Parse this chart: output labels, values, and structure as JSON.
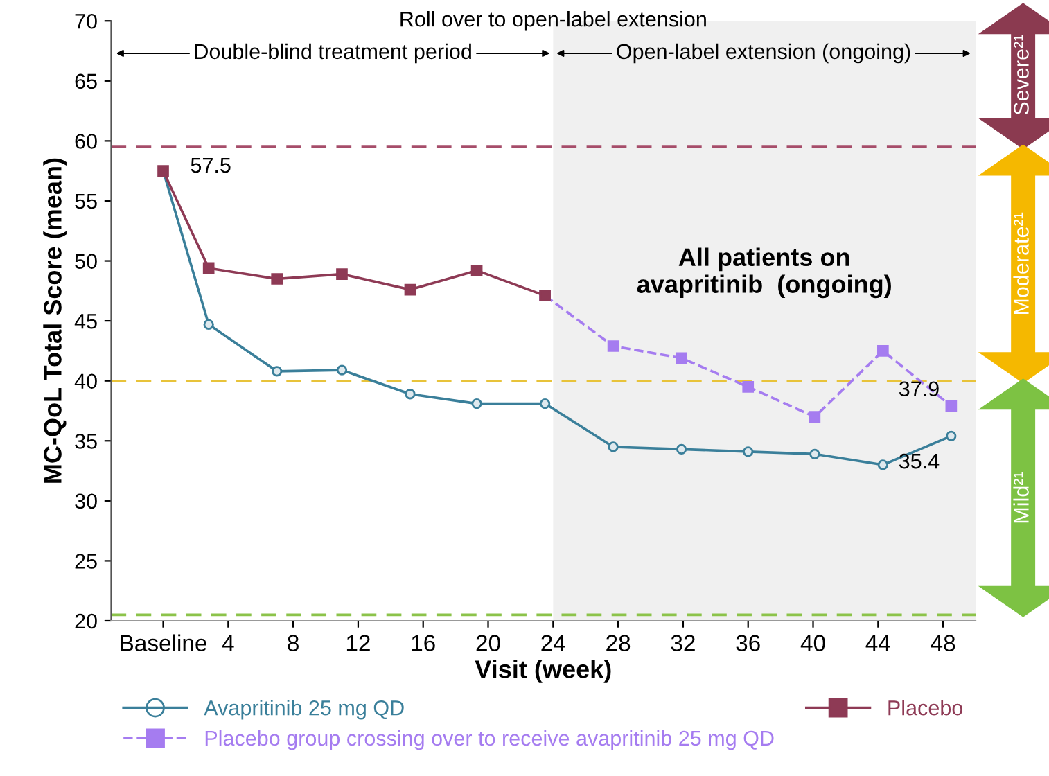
{
  "chart_data": {
    "type": "line",
    "xlabel": "Visit (week)",
    "ylabel": "MC-QoL Total Score (mean)",
    "xlim": [
      -3.2,
      50
    ],
    "ylim": [
      20,
      70
    ],
    "xticks": [
      {
        "value": 0,
        "label": "Baseline"
      },
      4,
      8,
      12,
      16,
      20,
      24,
      28,
      32,
      36,
      40,
      44,
      48
    ],
    "yticks": [
      20,
      25,
      30,
      35,
      40,
      45,
      50,
      55,
      60,
      65,
      70
    ],
    "grid": false,
    "legend": "bottom",
    "series": [
      {
        "name": "Avapritinib 25 mg QD",
        "color": "#3a7f9a",
        "marker": "circle",
        "line_style": "solid",
        "x": [
          0,
          2.8,
          7,
          11,
          15.2,
          19.3,
          23.5,
          27.7,
          31.9,
          36,
          40.1,
          44.3,
          48.5
        ],
        "values": [
          57.5,
          44.7,
          40.8,
          40.9,
          38.9,
          38.1,
          38.1,
          34.5,
          34.3,
          34.1,
          33.9,
          33.0,
          35.4
        ],
        "value_labels": [
          "57.5",
          null,
          null,
          null,
          null,
          null,
          null,
          null,
          null,
          null,
          null,
          null,
          "35.4"
        ]
      },
      {
        "name": "Placebo",
        "color": "#8e3a55",
        "marker": "square",
        "line_style": "solid",
        "x": [
          0,
          2.8,
          7,
          11,
          15.2,
          19.3,
          23.5
        ],
        "values": [
          57.5,
          49.4,
          48.5,
          48.9,
          47.6,
          49.2,
          47.1
        ]
      },
      {
        "name": "Placebo group crossing over to receive avapritinib 25 mg QD",
        "color": "#a57cf0",
        "marker": "square",
        "line_style": "dashed",
        "x": [
          23.5,
          27.7,
          31.9,
          36,
          40.1,
          44.3,
          48.5
        ],
        "values": [
          47.1,
          42.9,
          41.9,
          39.5,
          37.0,
          42.5,
          37.9
        ],
        "value_labels": [
          null,
          null,
          null,
          null,
          null,
          null,
          "37.9"
        ]
      }
    ],
    "ref_lines": [
      {
        "axis": "y",
        "value": 59.5,
        "color": "#a64d6a",
        "line_style": "dashed"
      },
      {
        "axis": "y",
        "value": 40,
        "color": "#e8c33a",
        "line_style": "dashed"
      },
      {
        "axis": "y",
        "value": 20.5,
        "color": "#8cc34a",
        "line_style": "dashed"
      }
    ],
    "bands": [
      {
        "axis": "x",
        "from": 24,
        "to": 50,
        "label": "All patients on\navapritinib  (ongoing)",
        "color": "#f0f0f0"
      }
    ],
    "annotations": [
      "Roll over to open-label extension",
      "Double-blind treatment period",
      "Open-label extension (ongoing)",
      "Severe²¹",
      "Moderate²¹",
      "Mild²¹"
    ]
  }
}
